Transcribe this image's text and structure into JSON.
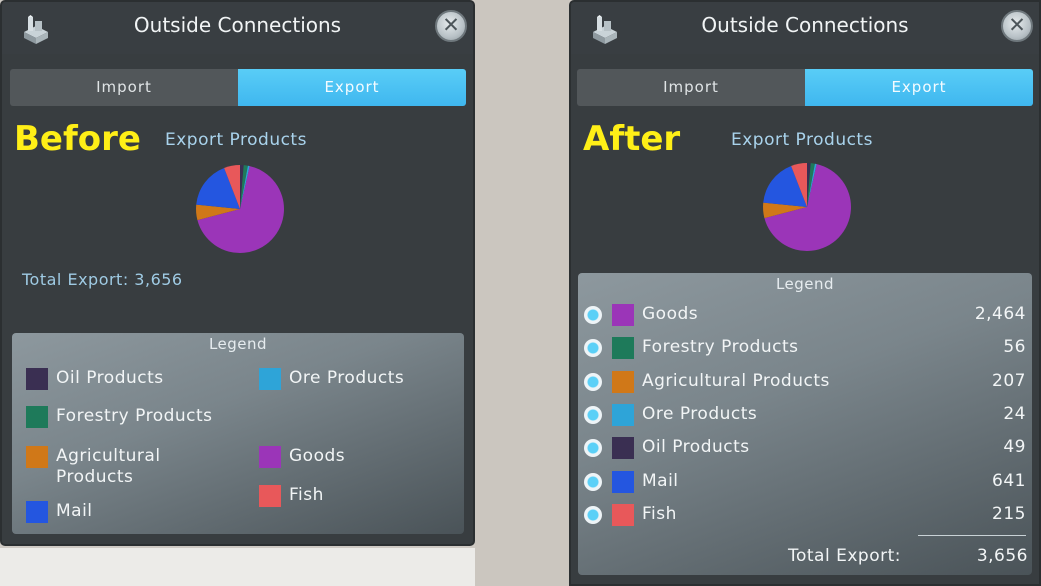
{
  "colors": {
    "goods": "#9b35b8",
    "forestry": "#1e7a5a",
    "agricultural": "#d07818",
    "ore": "#2ea4d8",
    "oil": "#3a2f52",
    "mail": "#2456e0",
    "fish": "#e8585a"
  },
  "before": {
    "label": "Before",
    "title": "Outside Connections",
    "tabs": {
      "import": "Import",
      "export": "Export"
    },
    "chart_title": "Export Products",
    "total_text": "Total Export: 3,656",
    "legend_title": "Legend",
    "legend": {
      "oil": "Oil Products",
      "ore": "Ore Products",
      "forestry": "Forestry Products",
      "agricultural": "Agricultural Products",
      "goods": "Goods",
      "fish": "Fish",
      "mail": "Mail"
    }
  },
  "after": {
    "label": "After",
    "title": "Outside Connections",
    "tabs": {
      "import": "Import",
      "export": "Export"
    },
    "chart_title": "Export Products",
    "legend_title": "Legend",
    "rows": [
      {
        "key": "goods",
        "name": "Goods",
        "value": "2,464"
      },
      {
        "key": "forestry",
        "name": "Forestry Products",
        "value": "56"
      },
      {
        "key": "agricultural",
        "name": "Agricultural Products",
        "value": "207"
      },
      {
        "key": "ore",
        "name": "Ore Products",
        "value": "24"
      },
      {
        "key": "oil",
        "name": "Oil Products",
        "value": "49"
      },
      {
        "key": "mail",
        "name": "Mail",
        "value": "641"
      },
      {
        "key": "fish",
        "name": "Fish",
        "value": "215"
      }
    ],
    "total_label": "Total Export:",
    "total_value": "3,656"
  },
  "chart_data": {
    "type": "pie",
    "title": "Export Products",
    "categories": [
      "Goods",
      "Forestry Products",
      "Agricultural Products",
      "Ore Products",
      "Oil Products",
      "Mail",
      "Fish"
    ],
    "values": [
      2464,
      56,
      207,
      24,
      49,
      641,
      215
    ],
    "total": 3656
  }
}
